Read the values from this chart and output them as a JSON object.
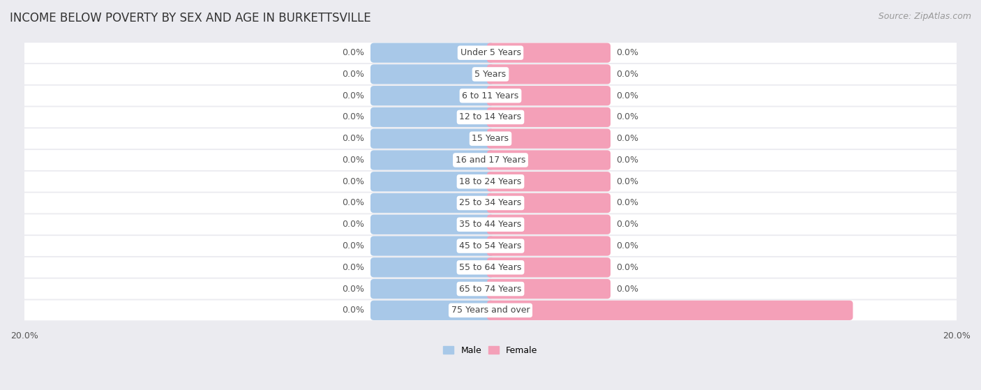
{
  "title": "INCOME BELOW POVERTY BY SEX AND AGE IN BURKETTSVILLE",
  "source": "Source: ZipAtlas.com",
  "categories": [
    "Under 5 Years",
    "5 Years",
    "6 to 11 Years",
    "12 to 14 Years",
    "15 Years",
    "16 and 17 Years",
    "18 to 24 Years",
    "25 to 34 Years",
    "35 to 44 Years",
    "45 to 54 Years",
    "55 to 64 Years",
    "65 to 74 Years",
    "75 Years and over"
  ],
  "male_values": [
    0.0,
    0.0,
    0.0,
    0.0,
    0.0,
    0.0,
    0.0,
    0.0,
    0.0,
    0.0,
    0.0,
    0.0,
    0.0
  ],
  "female_values": [
    0.0,
    0.0,
    0.0,
    0.0,
    0.0,
    0.0,
    0.0,
    0.0,
    0.0,
    0.0,
    0.0,
    0.0,
    15.4
  ],
  "male_color": "#a8c8e8",
  "female_color": "#f4a0b8",
  "xlim": 20.0,
  "min_bar_width": 5.0,
  "background_color": "#ebebf0",
  "row_color": "#ffffff",
  "title_fontsize": 12,
  "source_fontsize": 9,
  "value_fontsize": 9,
  "label_fontsize": 9,
  "legend_fontsize": 9,
  "bar_height": 0.62
}
